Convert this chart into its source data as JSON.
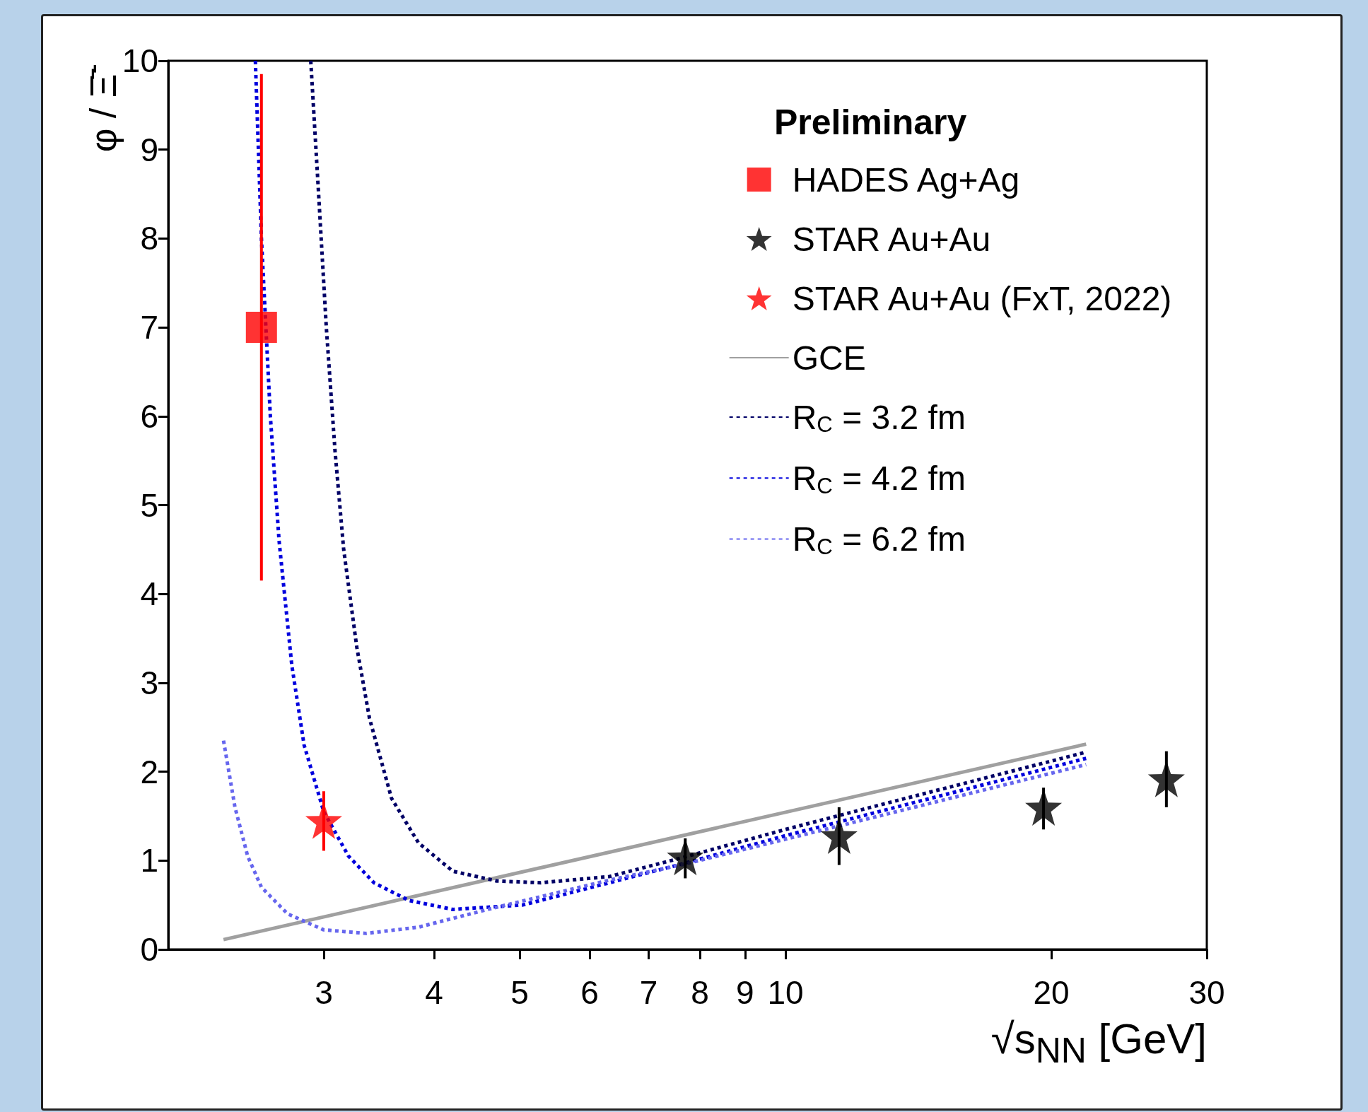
{
  "chart_data": {
    "type": "scatter",
    "xlabel": "√s$_{NN}$ [GeV]",
    "ylabel": "φ / Ξ̄$^{-}$",
    "annotations": [
      "Preliminary"
    ],
    "log": "x",
    "xlim": [
      2,
      30
    ],
    "xticks": [
      3,
      4,
      5,
      6,
      7,
      8,
      9,
      10,
      20,
      30
    ],
    "ylim": [
      0,
      10
    ],
    "yticks": [
      0,
      1,
      2,
      3,
      4,
      5,
      6,
      7,
      8,
      9,
      10
    ],
    "grid": false,
    "legend": "top right",
    "series": [
      {
        "name": "HADES Ag+Ag",
        "marker": "square",
        "color": "#ff0000",
        "x": [
          2.55
        ],
        "values": [
          7.0
        ],
        "errors": [
          [
            4.15,
            9.85
          ]
        ]
      },
      {
        "name": "STAR Au+Au",
        "marker": "star",
        "color": "#000000",
        "x": [
          7.7,
          11.5,
          19.6,
          27
        ],
        "values": [
          1.04,
          1.28,
          1.6,
          1.92
        ],
        "errors": [
          [
            0.8,
            1.25
          ],
          [
            0.95,
            1.6
          ],
          [
            1.35,
            1.82
          ],
          [
            1.6,
            2.23
          ]
        ]
      },
      {
        "name": "STAR Au+Au (FxT, 2022)",
        "marker": "star",
        "color": "#ff0000",
        "x": [
          3.0
        ],
        "values": [
          1.45
        ],
        "errors": [
          [
            1.11,
            1.78
          ]
        ]
      },
      {
        "name": "GCE",
        "type": "line",
        "marker": "none",
        "line_style": "solid",
        "color": "#a0a0a0",
        "x": [
          2.31,
          21.9
        ],
        "values": [
          0.11,
          2.31
        ]
      },
      {
        "name": "R$_{C}$ = 3.2 fm",
        "type": "line",
        "marker": "none",
        "line_style": "dotted",
        "color": "#000066",
        "x": [
          2.9,
          2.96,
          3.02,
          3.09,
          3.16,
          3.27,
          3.38,
          3.58,
          3.84,
          4.2,
          4.71,
          5.28,
          6.32,
          7.69,
          10,
          12.5,
          21.9
        ],
        "values": [
          10,
          8.5,
          7.0,
          5.6,
          4.5,
          3.4,
          2.6,
          1.7,
          1.2,
          0.88,
          0.77,
          0.75,
          0.82,
          1.04,
          1.35,
          1.6,
          2.22
        ]
      },
      {
        "name": "R$_{C}$ = 4.2 fm",
        "type": "line",
        "marker": "none",
        "line_style": "dotted",
        "color": "#0000dd",
        "x": [
          2.51,
          2.55,
          2.61,
          2.67,
          2.76,
          2.85,
          3.0,
          3.2,
          3.42,
          3.75,
          4.2,
          5.04,
          6.32,
          7.69,
          10,
          21.9
        ],
        "values": [
          10,
          8.0,
          6.0,
          4.6,
          3.2,
          2.3,
          1.55,
          1.05,
          0.75,
          0.55,
          0.45,
          0.5,
          0.75,
          0.97,
          1.28,
          2.15
        ]
      },
      {
        "name": "R$_{C}$ = 6.2 fm",
        "type": "line",
        "marker": "none",
        "line_style": "dotted",
        "color": "#6666ee",
        "x": [
          2.31,
          2.38,
          2.46,
          2.55,
          2.73,
          3.0,
          3.35,
          3.84,
          4.6,
          6.32,
          7.69,
          10,
          21.9
        ],
        "values": [
          2.35,
          1.6,
          1.05,
          0.7,
          0.4,
          0.22,
          0.18,
          0.25,
          0.45,
          0.78,
          0.96,
          1.24,
          2.08
        ]
      }
    ]
  }
}
